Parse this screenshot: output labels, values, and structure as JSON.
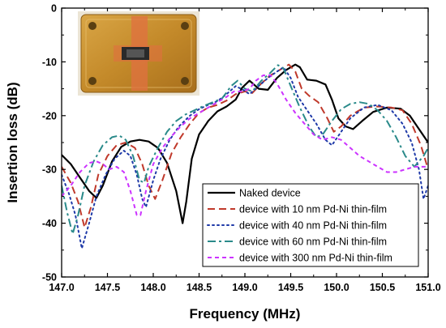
{
  "chart_data": {
    "type": "line",
    "xlabel": "Frequency (MHz)",
    "ylabel": "Insertion loss (dB)",
    "xlim": [
      147.0,
      151.0
    ],
    "ylim": [
      -50,
      0
    ],
    "x_ticks": [
      "147.0",
      "147.5",
      "148.0",
      "148.5",
      "149.0",
      "149.5",
      "150.0",
      "150.5",
      "151.0"
    ],
    "y_ticks": [
      "0",
      "-10",
      "-20",
      "-30",
      "-40",
      "-50"
    ],
    "grid": false,
    "legend_position": "bottom-right",
    "inset_image": "photo of packaged SAW device on gold carrier",
    "series": [
      {
        "name": "Naked device",
        "color": "#000000",
        "dash": "solid",
        "points": [
          [
            147.0,
            -27.3
          ],
          [
            147.1,
            -29
          ],
          [
            147.2,
            -31.5
          ],
          [
            147.3,
            -34
          ],
          [
            147.38,
            -35.3
          ],
          [
            147.45,
            -33
          ],
          [
            147.55,
            -28.5
          ],
          [
            147.65,
            -25.8
          ],
          [
            147.75,
            -24.8
          ],
          [
            147.85,
            -24.5
          ],
          [
            147.95,
            -24.8
          ],
          [
            148.05,
            -26
          ],
          [
            148.15,
            -28.8
          ],
          [
            148.25,
            -34
          ],
          [
            148.32,
            -40
          ],
          [
            148.36,
            -36
          ],
          [
            148.42,
            -28
          ],
          [
            148.5,
            -23.5
          ],
          [
            148.6,
            -21
          ],
          [
            148.7,
            -19.2
          ],
          [
            148.8,
            -18.3
          ],
          [
            148.9,
            -17
          ],
          [
            148.97,
            -14.8
          ],
          [
            149.05,
            -13.5
          ],
          [
            149.15,
            -15
          ],
          [
            149.25,
            -15.2
          ],
          [
            149.35,
            -13
          ],
          [
            149.45,
            -11.5
          ],
          [
            149.55,
            -10.5
          ],
          [
            149.6,
            -11
          ],
          [
            149.68,
            -13.3
          ],
          [
            149.78,
            -13.5
          ],
          [
            149.88,
            -14.2
          ],
          [
            149.95,
            -17
          ],
          [
            150.02,
            -20.5
          ],
          [
            150.1,
            -22
          ],
          [
            150.18,
            -22.5
          ],
          [
            150.28,
            -21
          ],
          [
            150.4,
            -19.3
          ],
          [
            150.55,
            -18.5
          ],
          [
            150.7,
            -18.7
          ],
          [
            150.8,
            -20
          ],
          [
            150.9,
            -22.5
          ],
          [
            151.0,
            -25
          ]
        ]
      },
      {
        "name": "device with 10 nm Pd-Ni thin-film",
        "color": "#c0392b",
        "dash": "dash",
        "points": [
          [
            147.0,
            -29.5
          ],
          [
            147.1,
            -32.5
          ],
          [
            147.18,
            -36
          ],
          [
            147.25,
            -40.8
          ],
          [
            147.32,
            -37
          ],
          [
            147.4,
            -31
          ],
          [
            147.5,
            -27.5
          ],
          [
            147.6,
            -25.5
          ],
          [
            147.7,
            -25
          ],
          [
            147.8,
            -26
          ],
          [
            147.88,
            -29
          ],
          [
            147.95,
            -33
          ],
          [
            148.02,
            -35.5
          ],
          [
            148.1,
            -32
          ],
          [
            148.2,
            -27
          ],
          [
            148.3,
            -24
          ],
          [
            148.4,
            -21.5
          ],
          [
            148.5,
            -19.5
          ],
          [
            148.6,
            -18.5
          ],
          [
            148.7,
            -18
          ],
          [
            148.8,
            -17.2
          ],
          [
            148.9,
            -16
          ],
          [
            149.0,
            -15.5
          ],
          [
            149.08,
            -15.8
          ],
          [
            149.18,
            -14
          ],
          [
            149.28,
            -12.5
          ],
          [
            149.38,
            -11.5
          ],
          [
            149.48,
            -10.5
          ],
          [
            149.55,
            -11.8
          ],
          [
            149.62,
            -15
          ],
          [
            149.7,
            -16.3
          ],
          [
            149.8,
            -17.5
          ],
          [
            149.9,
            -20.5
          ],
          [
            149.97,
            -23
          ],
          [
            150.05,
            -22
          ],
          [
            150.15,
            -20
          ],
          [
            150.3,
            -18.5
          ],
          [
            150.45,
            -18.3
          ],
          [
            150.6,
            -18.5
          ],
          [
            150.72,
            -19
          ],
          [
            150.82,
            -21.5
          ],
          [
            150.92,
            -25.5
          ],
          [
            151.0,
            -30
          ]
        ]
      },
      {
        "name": "device with 40 nm Pd-Ni thin-film",
        "color": "#1f3aa8",
        "dash": "dot",
        "points": [
          [
            147.0,
            -31
          ],
          [
            147.08,
            -34.5
          ],
          [
            147.15,
            -38.5
          ],
          [
            147.22,
            -44.7
          ],
          [
            147.3,
            -40
          ],
          [
            147.38,
            -35
          ],
          [
            147.48,
            -31
          ],
          [
            147.58,
            -28
          ],
          [
            147.68,
            -26.5
          ],
          [
            147.75,
            -27.5
          ],
          [
            147.82,
            -31
          ],
          [
            147.88,
            -35.5
          ],
          [
            147.92,
            -37
          ],
          [
            148.0,
            -32
          ],
          [
            148.08,
            -28
          ],
          [
            148.18,
            -24.5
          ],
          [
            148.28,
            -22
          ],
          [
            148.4,
            -20
          ],
          [
            148.5,
            -18.8
          ],
          [
            148.6,
            -18
          ],
          [
            148.7,
            -17.3
          ],
          [
            148.8,
            -16
          ],
          [
            148.9,
            -14.5
          ],
          [
            148.98,
            -15.2
          ],
          [
            149.05,
            -16
          ],
          [
            149.15,
            -14.5
          ],
          [
            149.25,
            -13
          ],
          [
            149.35,
            -11.8
          ],
          [
            149.42,
            -11
          ],
          [
            149.5,
            -13
          ],
          [
            149.58,
            -16.5
          ],
          [
            149.68,
            -19
          ],
          [
            149.78,
            -21.5
          ],
          [
            149.88,
            -24.5
          ],
          [
            149.95,
            -25.5
          ],
          [
            150.05,
            -23
          ],
          [
            150.15,
            -20.5
          ],
          [
            150.3,
            -18.5
          ],
          [
            150.45,
            -18
          ],
          [
            150.6,
            -19
          ],
          [
            150.72,
            -21.5
          ],
          [
            150.82,
            -25
          ],
          [
            150.9,
            -30
          ],
          [
            150.95,
            -35.5
          ],
          [
            151.0,
            -33
          ]
        ]
      },
      {
        "name": "device with 60 nm Pd-Ni thin-film",
        "color": "#2a8a8a",
        "dash": "dashdot",
        "points": [
          [
            147.0,
            -33
          ],
          [
            147.06,
            -38
          ],
          [
            147.12,
            -42
          ],
          [
            147.18,
            -38.5
          ],
          [
            147.25,
            -33
          ],
          [
            147.35,
            -28.5
          ],
          [
            147.45,
            -25.5
          ],
          [
            147.55,
            -24
          ],
          [
            147.63,
            -23.7
          ],
          [
            147.7,
            -24.5
          ],
          [
            147.78,
            -27.5
          ],
          [
            147.85,
            -32
          ],
          [
            147.9,
            -32.5
          ],
          [
            147.95,
            -29.5
          ],
          [
            148.05,
            -26
          ],
          [
            148.15,
            -23
          ],
          [
            148.25,
            -21
          ],
          [
            148.35,
            -19.8
          ],
          [
            148.45,
            -19
          ],
          [
            148.55,
            -18.2
          ],
          [
            148.65,
            -17.5
          ],
          [
            148.75,
            -16.8
          ],
          [
            148.85,
            -14.5
          ],
          [
            148.92,
            -13.5
          ],
          [
            149.0,
            -15
          ],
          [
            149.08,
            -15.5
          ],
          [
            149.18,
            -13.5
          ],
          [
            149.28,
            -12
          ],
          [
            149.36,
            -10.6
          ],
          [
            149.42,
            -11.2
          ],
          [
            149.5,
            -14.5
          ],
          [
            149.6,
            -18.5
          ],
          [
            149.7,
            -22
          ],
          [
            149.78,
            -24
          ],
          [
            149.85,
            -23.5
          ],
          [
            149.95,
            -21
          ],
          [
            150.05,
            -18.8
          ],
          [
            150.15,
            -17.8
          ],
          [
            150.25,
            -17.5
          ],
          [
            150.35,
            -17.8
          ],
          [
            150.45,
            -19
          ],
          [
            150.55,
            -21
          ],
          [
            150.65,
            -24
          ],
          [
            150.75,
            -27.5
          ],
          [
            150.85,
            -29.5
          ],
          [
            150.95,
            -27.5
          ],
          [
            151.0,
            -26
          ]
        ]
      },
      {
        "name": "device with 300 nm Pd-Ni thin-film",
        "color": "#cc33ff",
        "dash": "shortdash",
        "points": [
          [
            147.0,
            -35
          ],
          [
            147.1,
            -33
          ],
          [
            147.2,
            -30.5
          ],
          [
            147.3,
            -28.8
          ],
          [
            147.38,
            -28.5
          ],
          [
            147.45,
            -29
          ],
          [
            147.52,
            -30
          ],
          [
            147.6,
            -29.5
          ],
          [
            147.68,
            -30.5
          ],
          [
            147.75,
            -34
          ],
          [
            147.82,
            -38.5
          ],
          [
            147.86,
            -38.5
          ],
          [
            147.92,
            -34
          ],
          [
            148.0,
            -29
          ],
          [
            148.1,
            -26
          ],
          [
            148.2,
            -23.8
          ],
          [
            148.3,
            -22
          ],
          [
            148.4,
            -20.5
          ],
          [
            148.5,
            -19.5
          ],
          [
            148.6,
            -18.5
          ],
          [
            148.7,
            -17.5
          ],
          [
            148.8,
            -16.5
          ],
          [
            148.88,
            -15.5
          ],
          [
            148.97,
            -15.5
          ],
          [
            149.05,
            -15
          ],
          [
            149.12,
            -13.5
          ],
          [
            149.2,
            -12.5
          ],
          [
            149.28,
            -12.5
          ],
          [
            149.35,
            -14
          ],
          [
            149.45,
            -17
          ],
          [
            149.55,
            -19.5
          ],
          [
            149.65,
            -21.5
          ],
          [
            149.75,
            -23.5
          ],
          [
            149.85,
            -24.5
          ],
          [
            149.95,
            -24
          ],
          [
            150.05,
            -24.5
          ],
          [
            150.15,
            -26
          ],
          [
            150.25,
            -27.5
          ],
          [
            150.35,
            -28.5
          ],
          [
            150.45,
            -29.5
          ],
          [
            150.55,
            -30.5
          ],
          [
            150.65,
            -30.5
          ],
          [
            150.75,
            -30
          ],
          [
            150.85,
            -29.5
          ],
          [
            150.95,
            -29.5
          ],
          [
            151.0,
            -29.5
          ]
        ]
      }
    ]
  }
}
